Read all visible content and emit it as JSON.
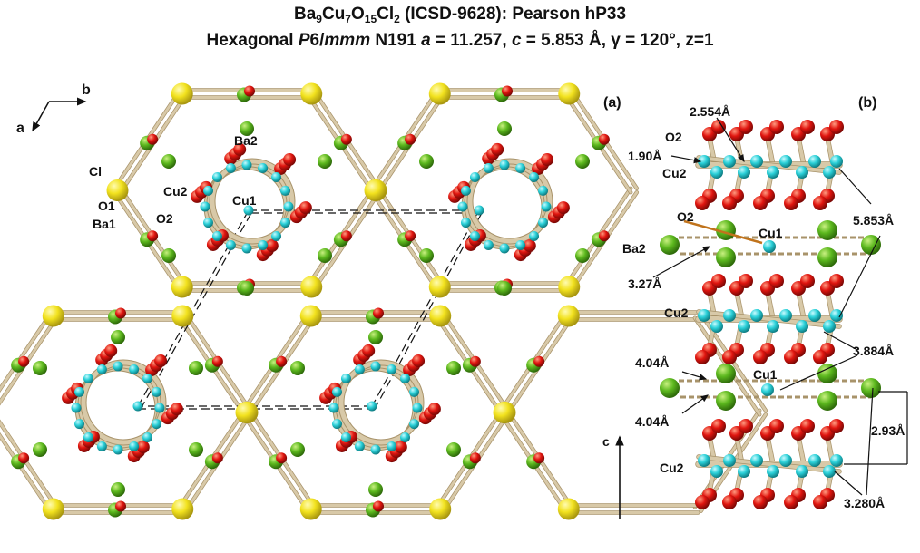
{
  "title": {
    "line1": {
      "formula": [
        {
          "text": "Ba",
          "sub": false
        },
        {
          "text": "9",
          "sub": true
        },
        {
          "text": "Cu",
          "sub": false
        },
        {
          "text": "7",
          "sub": true
        },
        {
          "text": "O",
          "sub": false
        },
        {
          "text": "15",
          "sub": true
        },
        {
          "text": "Cl",
          "sub": false
        },
        {
          "text": "2",
          "sub": true
        }
      ],
      "rest": " (ICSD-9628): Pearson hP33"
    },
    "line2": {
      "prefix": "Hexagonal ",
      "spacegroup": [
        {
          "text": "P",
          "italic": true
        },
        {
          "text": "6/",
          "italic": false
        },
        {
          "text": "mmm",
          "italic": true
        }
      ],
      "mid1": " N191 ",
      "a_sym": "a",
      "a_val": " = 11.257, ",
      "c_sym": "c",
      "c_val": " = 5.853 Å, γ = 120°, z=1"
    }
  },
  "axes_left": {
    "b": "b",
    "a": "a"
  },
  "panel_a_labels": {
    "panel": "(a)",
    "ba2": "Ba2",
    "cl": "Cl",
    "cu2": "Cu2",
    "cu1": "Cu1",
    "o1": "O1",
    "o2": "O2",
    "ba1": "Ba1"
  },
  "panel_b_labels": {
    "panel": "(b)",
    "o2_top": "O2",
    "d_2554": "2.554Å",
    "d_190": "1.90Å",
    "cu2_1": "Cu2",
    "o2_mid": "O2",
    "cu1_1": "Cu1",
    "d_5853": "5.853Å",
    "ba2": "Ba2",
    "d_327": "3.27Å",
    "cu2_2": "Cu2",
    "d_3884": "3.884Å",
    "d_404a": "4.04Å",
    "cu1_2": "Cu1",
    "d_404b": "4.04Å",
    "d_293": "2.93Å",
    "c_axis": "c",
    "cu2_3": "Cu2",
    "d_3280": "3.280Å"
  },
  "colors": {
    "bond": "#d8c9a8",
    "bond_dark": "#a8936a",
    "cl": "#f2e21e",
    "ba": "#5cb81e",
    "o": "#e0150f",
    "cu": "#2ad0d8",
    "cu1_bond": "#c0731c"
  }
}
